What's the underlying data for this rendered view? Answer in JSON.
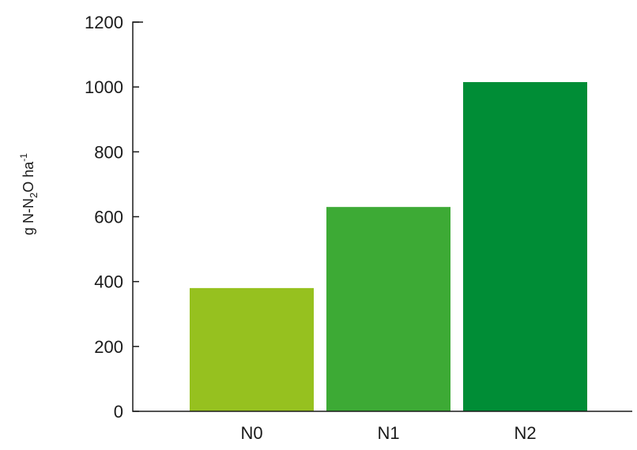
{
  "chart_data": {
    "type": "bar",
    "categories": [
      "N0",
      "N1",
      "N2"
    ],
    "values": [
      380,
      630,
      1015
    ],
    "colors": [
      "#96c11f",
      "#3daa35",
      "#008d36"
    ],
    "title": "",
    "xlabel": "",
    "ylabel_parts": {
      "prefix": "g N-N",
      "sub": "2",
      "middle": "O ha",
      "sup": "-1"
    },
    "ylim": [
      0,
      1200
    ],
    "yticks": [
      0,
      200,
      400,
      600,
      800,
      1000,
      1200
    ],
    "grid": false,
    "legend": "none"
  }
}
